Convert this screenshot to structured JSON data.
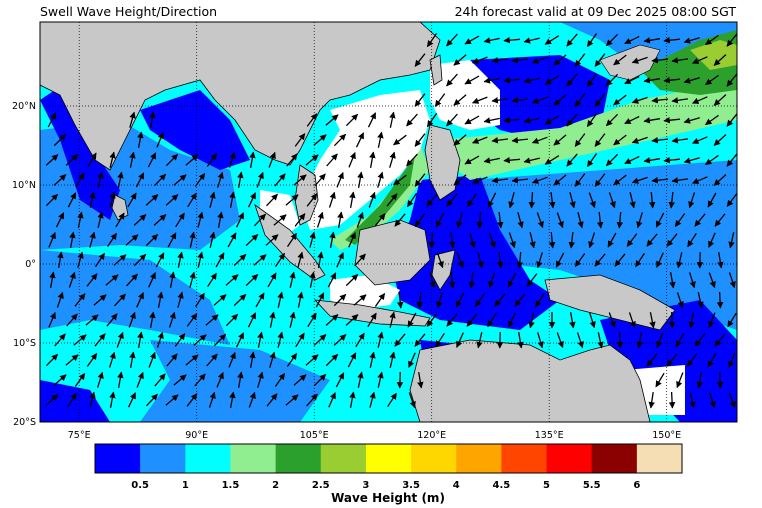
{
  "title_left": "Swell Wave Height/Direction",
  "title_right": "24h forecast valid at 09 Dec 2025 08:00 SGT",
  "map": {
    "lon_range": [
      68,
      157
    ],
    "lat_range": [
      -20,
      30
    ],
    "lon_ticks": [
      "75°E",
      "90°E",
      "105°E",
      "120°E",
      "135°E",
      "150°E"
    ],
    "lat_ticks": [
      "20°N",
      "10°N",
      "0°",
      "10°S",
      "20°S"
    ],
    "gridlines": "dotted",
    "land_color": "#c8c8c8",
    "no_data_color": "#ffffff"
  },
  "colorbar": {
    "title": "Wave Height (m)",
    "colors": [
      "#0000ff",
      "#1e90ff",
      "#00ffff",
      "#90ee90",
      "#2ca02c",
      "#9acd32",
      "#ffff00",
      "#ffd700",
      "#ffa500",
      "#ff4500",
      "#ff0000",
      "#8b0000",
      "#f5deb3"
    ],
    "tick_labels": [
      "0.5",
      "1",
      "1.5",
      "2",
      "2.5",
      "3",
      "3.5",
      "4",
      "4.5",
      "5",
      "5.5",
      "6"
    ]
  }
}
